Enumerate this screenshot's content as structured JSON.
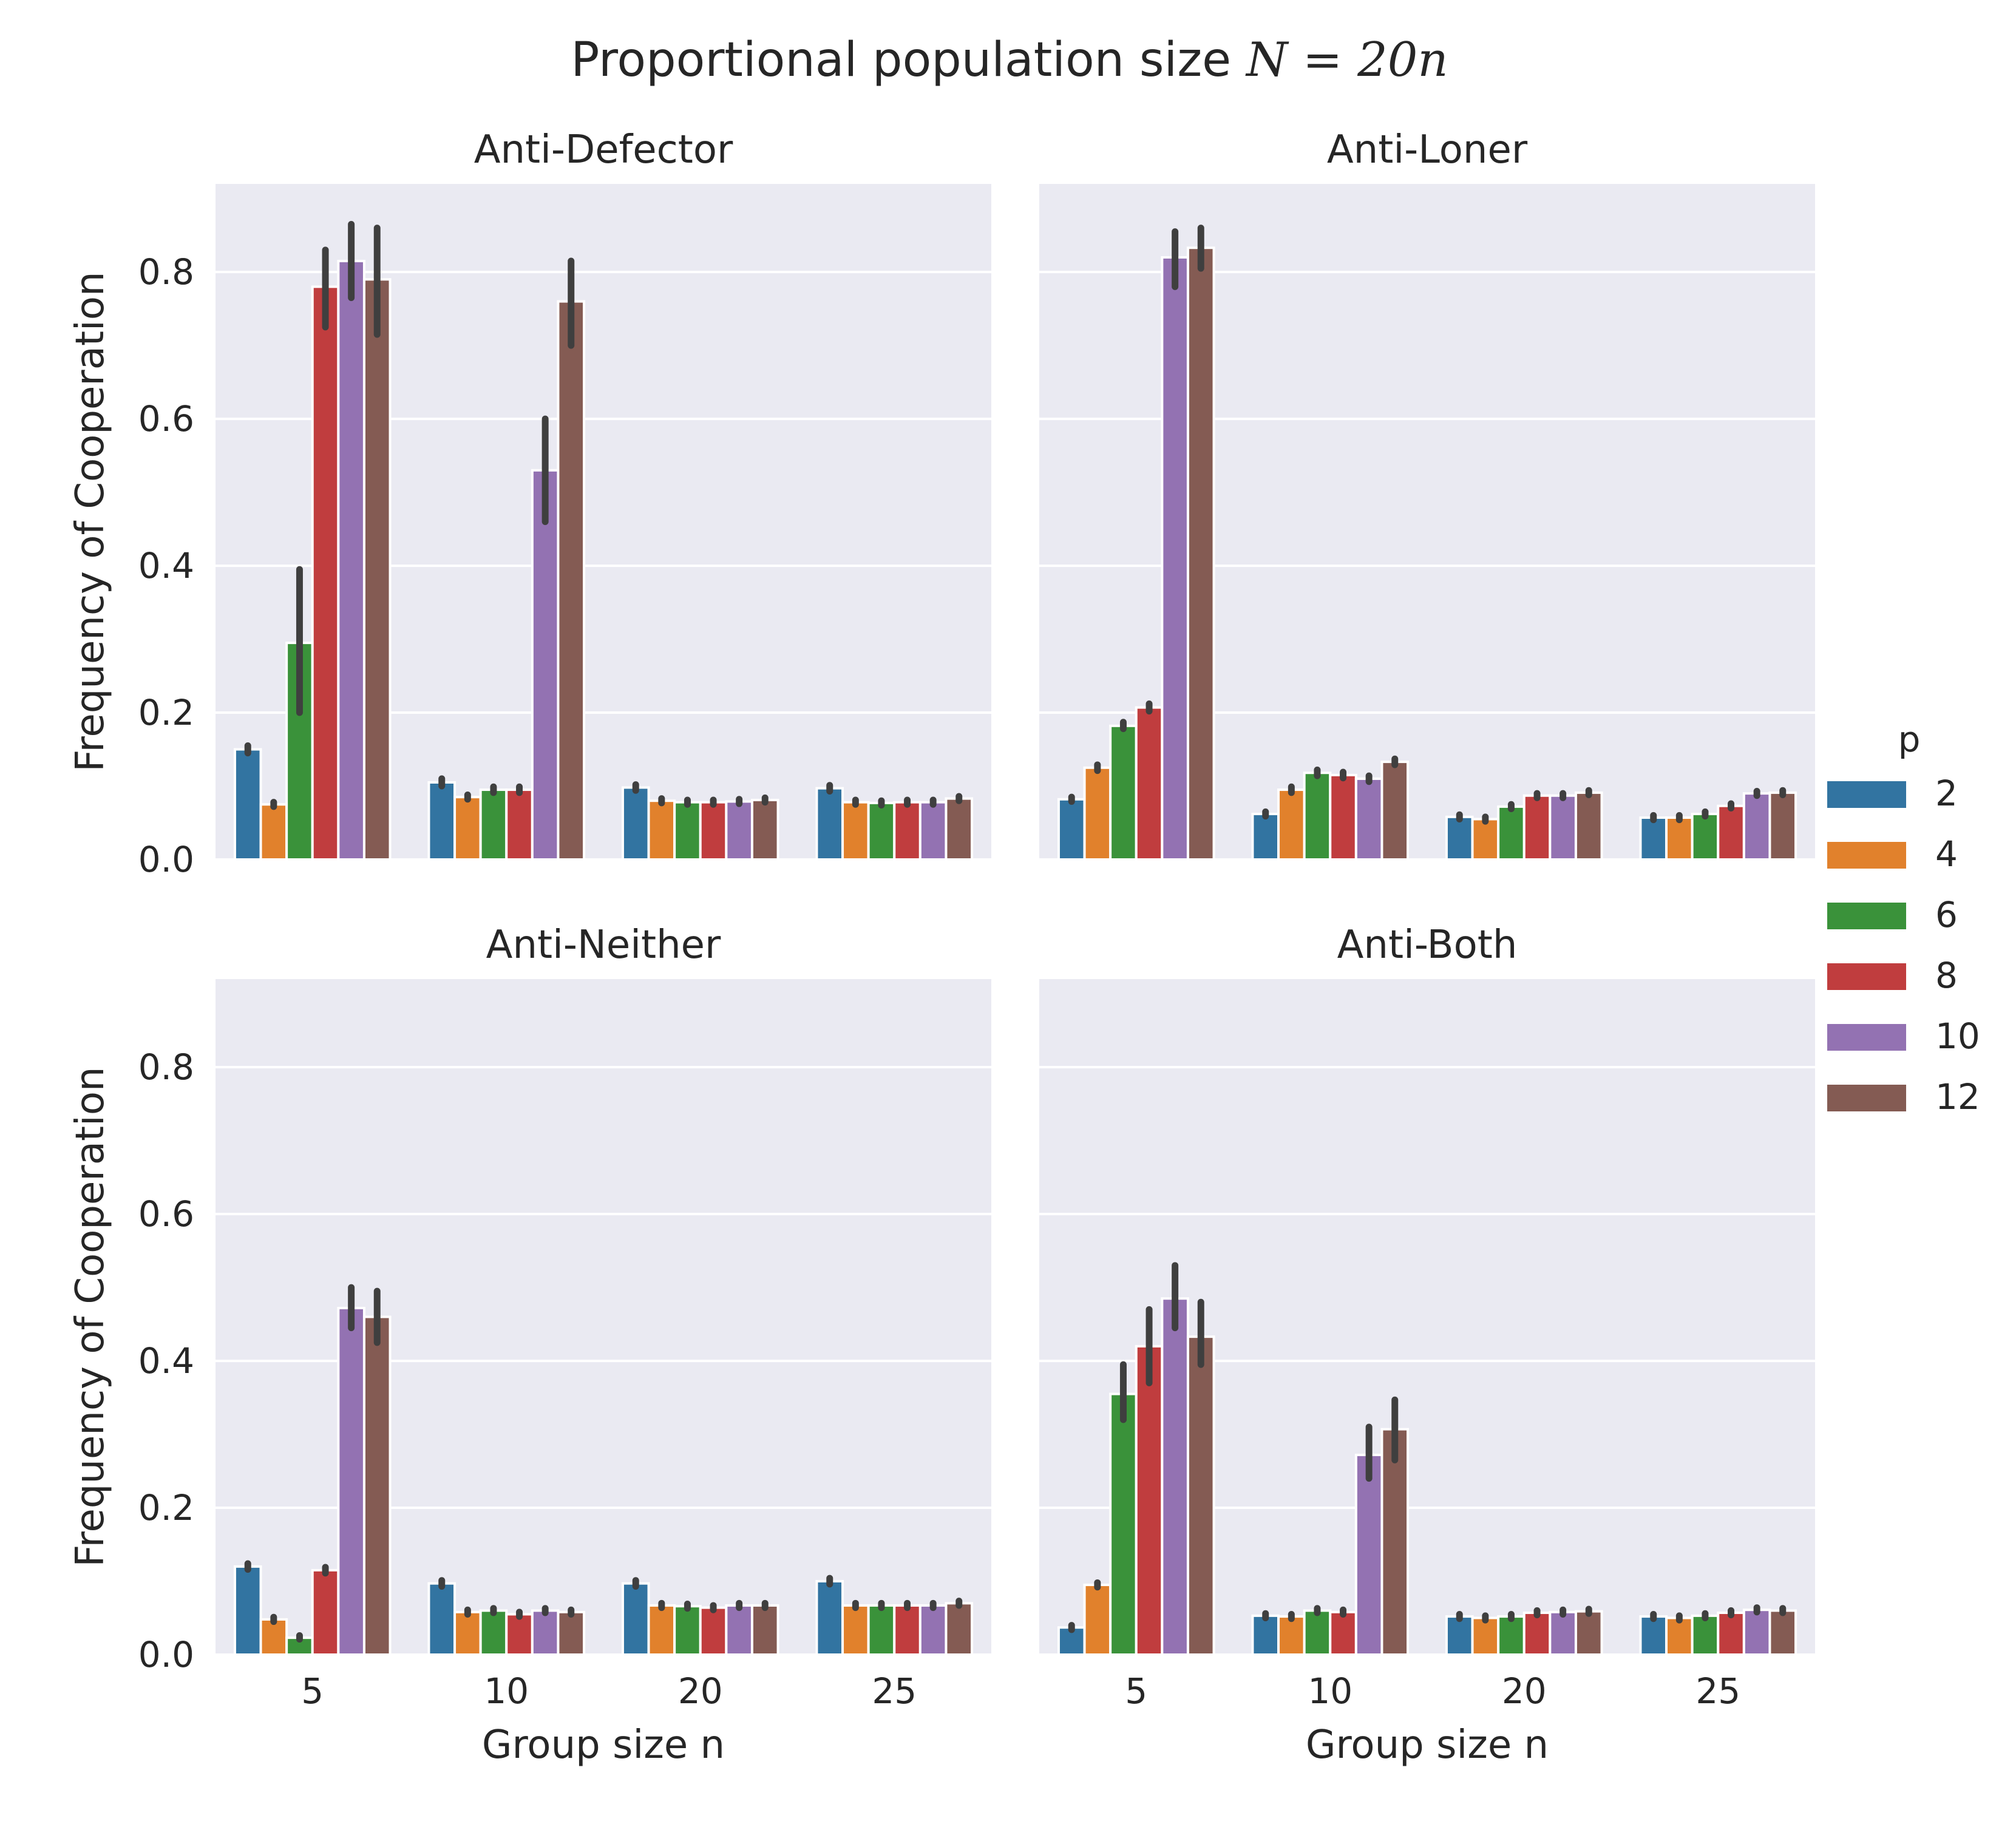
{
  "chart_data": {
    "type": "bar",
    "title": "Proportional population size N = 20n",
    "title_parts": {
      "text": "Proportional population size ",
      "math": "N = 20n"
    },
    "xlabel": "Group size n",
    "ylabel": "Frequency of Cooperation",
    "categories": [
      "5",
      "10",
      "20",
      "25"
    ],
    "ylim": [
      0,
      0.92
    ],
    "yticks": [
      "0.0",
      "0.2",
      "0.4",
      "0.6",
      "0.8"
    ],
    "ytick_values": [
      0.0,
      0.2,
      0.4,
      0.6,
      0.8
    ],
    "grid": true,
    "legend": {
      "title": "p",
      "placement": "center-right",
      "entries": [
        "2",
        "4",
        "6",
        "8",
        "10",
        "12"
      ],
      "colors": [
        "#3274a1",
        "#e1812c",
        "#3a923a",
        "#c03d3e",
        "#9372b2",
        "#845b53"
      ]
    },
    "panels": [
      {
        "title": "Anti-Defector",
        "series": [
          {
            "name": "2",
            "values": [
              0.15,
              0.105,
              0.098,
              0.097
            ],
            "err_low": [
              0.145,
              0.1,
              0.094,
              0.093
            ],
            "err_high": [
              0.155,
              0.11,
              0.102,
              0.101
            ]
          },
          {
            "name": "4",
            "values": [
              0.075,
              0.085,
              0.08,
              0.078
            ],
            "err_low": [
              0.072,
              0.082,
              0.077,
              0.075
            ],
            "err_high": [
              0.078,
              0.088,
              0.083,
              0.081
            ]
          },
          {
            "name": "6",
            "values": [
              0.295,
              0.095,
              0.078,
              0.077
            ],
            "err_low": [
              0.2,
              0.091,
              0.075,
              0.074
            ],
            "err_high": [
              0.395,
              0.099,
              0.081,
              0.08
            ]
          },
          {
            "name": "8",
            "values": [
              0.78,
              0.095,
              0.078,
              0.078
            ],
            "err_low": [
              0.725,
              0.091,
              0.075,
              0.075
            ],
            "err_high": [
              0.83,
              0.099,
              0.081,
              0.081
            ]
          },
          {
            "name": "10",
            "values": [
              0.815,
              0.53,
              0.079,
              0.078
            ],
            "err_low": [
              0.765,
              0.46,
              0.076,
              0.075
            ],
            "err_high": [
              0.865,
              0.6,
              0.082,
              0.081
            ]
          },
          {
            "name": "12",
            "values": [
              0.79,
              0.76,
              0.081,
              0.083
            ],
            "err_low": [
              0.715,
              0.7,
              0.078,
              0.08
            ],
            "err_high": [
              0.86,
              0.815,
              0.084,
              0.086
            ]
          }
        ]
      },
      {
        "title": "Anti-Loner",
        "series": [
          {
            "name": "2",
            "values": [
              0.082,
              0.062,
              0.058,
              0.057
            ],
            "err_low": [
              0.079,
              0.059,
              0.055,
              0.054
            ],
            "err_high": [
              0.085,
              0.065,
              0.061,
              0.06
            ]
          },
          {
            "name": "4",
            "values": [
              0.125,
              0.095,
              0.055,
              0.057
            ],
            "err_low": [
              0.121,
              0.091,
              0.052,
              0.054
            ],
            "err_high": [
              0.129,
              0.099,
              0.058,
              0.06
            ]
          },
          {
            "name": "6",
            "values": [
              0.182,
              0.118,
              0.072,
              0.062
            ],
            "err_low": [
              0.178,
              0.114,
              0.069,
              0.059
            ],
            "err_high": [
              0.187,
              0.122,
              0.075,
              0.065
            ]
          },
          {
            "name": "8",
            "values": [
              0.207,
              0.115,
              0.087,
              0.073
            ],
            "err_low": [
              0.202,
              0.111,
              0.084,
              0.07
            ],
            "err_high": [
              0.212,
              0.119,
              0.09,
              0.076
            ]
          },
          {
            "name": "10",
            "values": [
              0.82,
              0.11,
              0.087,
              0.09
            ],
            "err_low": [
              0.78,
              0.106,
              0.084,
              0.087
            ],
            "err_high": [
              0.855,
              0.114,
              0.09,
              0.093
            ]
          },
          {
            "name": "12",
            "values": [
              0.833,
              0.133,
              0.091,
              0.091
            ],
            "err_low": [
              0.805,
              0.129,
              0.088,
              0.088
            ],
            "err_high": [
              0.86,
              0.137,
              0.094,
              0.094
            ]
          }
        ]
      },
      {
        "title": "Anti-Neither",
        "series": [
          {
            "name": "2",
            "values": [
              0.12,
              0.097,
              0.097,
              0.1
            ],
            "err_low": [
              0.116,
              0.093,
              0.093,
              0.096
            ],
            "err_high": [
              0.124,
              0.101,
              0.101,
              0.104
            ]
          },
          {
            "name": "4",
            "values": [
              0.048,
              0.058,
              0.067,
              0.067
            ],
            "err_low": [
              0.045,
              0.055,
              0.064,
              0.064
            ],
            "err_high": [
              0.051,
              0.061,
              0.07,
              0.07
            ]
          },
          {
            "name": "6",
            "values": [
              0.023,
              0.06,
              0.066,
              0.067
            ],
            "err_low": [
              0.021,
              0.057,
              0.063,
              0.064
            ],
            "err_high": [
              0.026,
              0.063,
              0.069,
              0.07
            ]
          },
          {
            "name": "8",
            "values": [
              0.115,
              0.055,
              0.064,
              0.067
            ],
            "err_low": [
              0.111,
              0.052,
              0.061,
              0.064
            ],
            "err_high": [
              0.119,
              0.058,
              0.067,
              0.07
            ]
          },
          {
            "name": "10",
            "values": [
              0.472,
              0.06,
              0.067,
              0.067
            ],
            "err_low": [
              0.445,
              0.057,
              0.064,
              0.064
            ],
            "err_high": [
              0.5,
              0.063,
              0.07,
              0.07
            ]
          },
          {
            "name": "12",
            "values": [
              0.46,
              0.058,
              0.067,
              0.07
            ],
            "err_low": [
              0.425,
              0.055,
              0.064,
              0.067
            ],
            "err_high": [
              0.495,
              0.061,
              0.07,
              0.073
            ]
          }
        ]
      },
      {
        "title": "Anti-Both",
        "series": [
          {
            "name": "2",
            "values": [
              0.037,
              0.053,
              0.052,
              0.052
            ],
            "err_low": [
              0.034,
              0.05,
              0.049,
              0.049
            ],
            "err_high": [
              0.04,
              0.056,
              0.055,
              0.055
            ]
          },
          {
            "name": "4",
            "values": [
              0.095,
              0.052,
              0.05,
              0.05
            ],
            "err_low": [
              0.092,
              0.049,
              0.047,
              0.047
            ],
            "err_high": [
              0.098,
              0.055,
              0.053,
              0.053
            ]
          },
          {
            "name": "6",
            "values": [
              0.355,
              0.06,
              0.052,
              0.053
            ],
            "err_low": [
              0.32,
              0.057,
              0.049,
              0.05
            ],
            "err_high": [
              0.395,
              0.063,
              0.055,
              0.056
            ]
          },
          {
            "name": "8",
            "values": [
              0.42,
              0.058,
              0.057,
              0.057
            ],
            "err_low": [
              0.37,
              0.055,
              0.054,
              0.054
            ],
            "err_high": [
              0.47,
              0.061,
              0.06,
              0.06
            ]
          },
          {
            "name": "10",
            "values": [
              0.485,
              0.272,
              0.058,
              0.061
            ],
            "err_low": [
              0.445,
              0.24,
              0.055,
              0.058
            ],
            "err_high": [
              0.53,
              0.31,
              0.061,
              0.064
            ]
          },
          {
            "name": "12",
            "values": [
              0.433,
              0.307,
              0.059,
              0.06
            ],
            "err_low": [
              0.395,
              0.265,
              0.056,
              0.057
            ],
            "err_high": [
              0.48,
              0.347,
              0.062,
              0.063
            ]
          }
        ]
      }
    ]
  }
}
